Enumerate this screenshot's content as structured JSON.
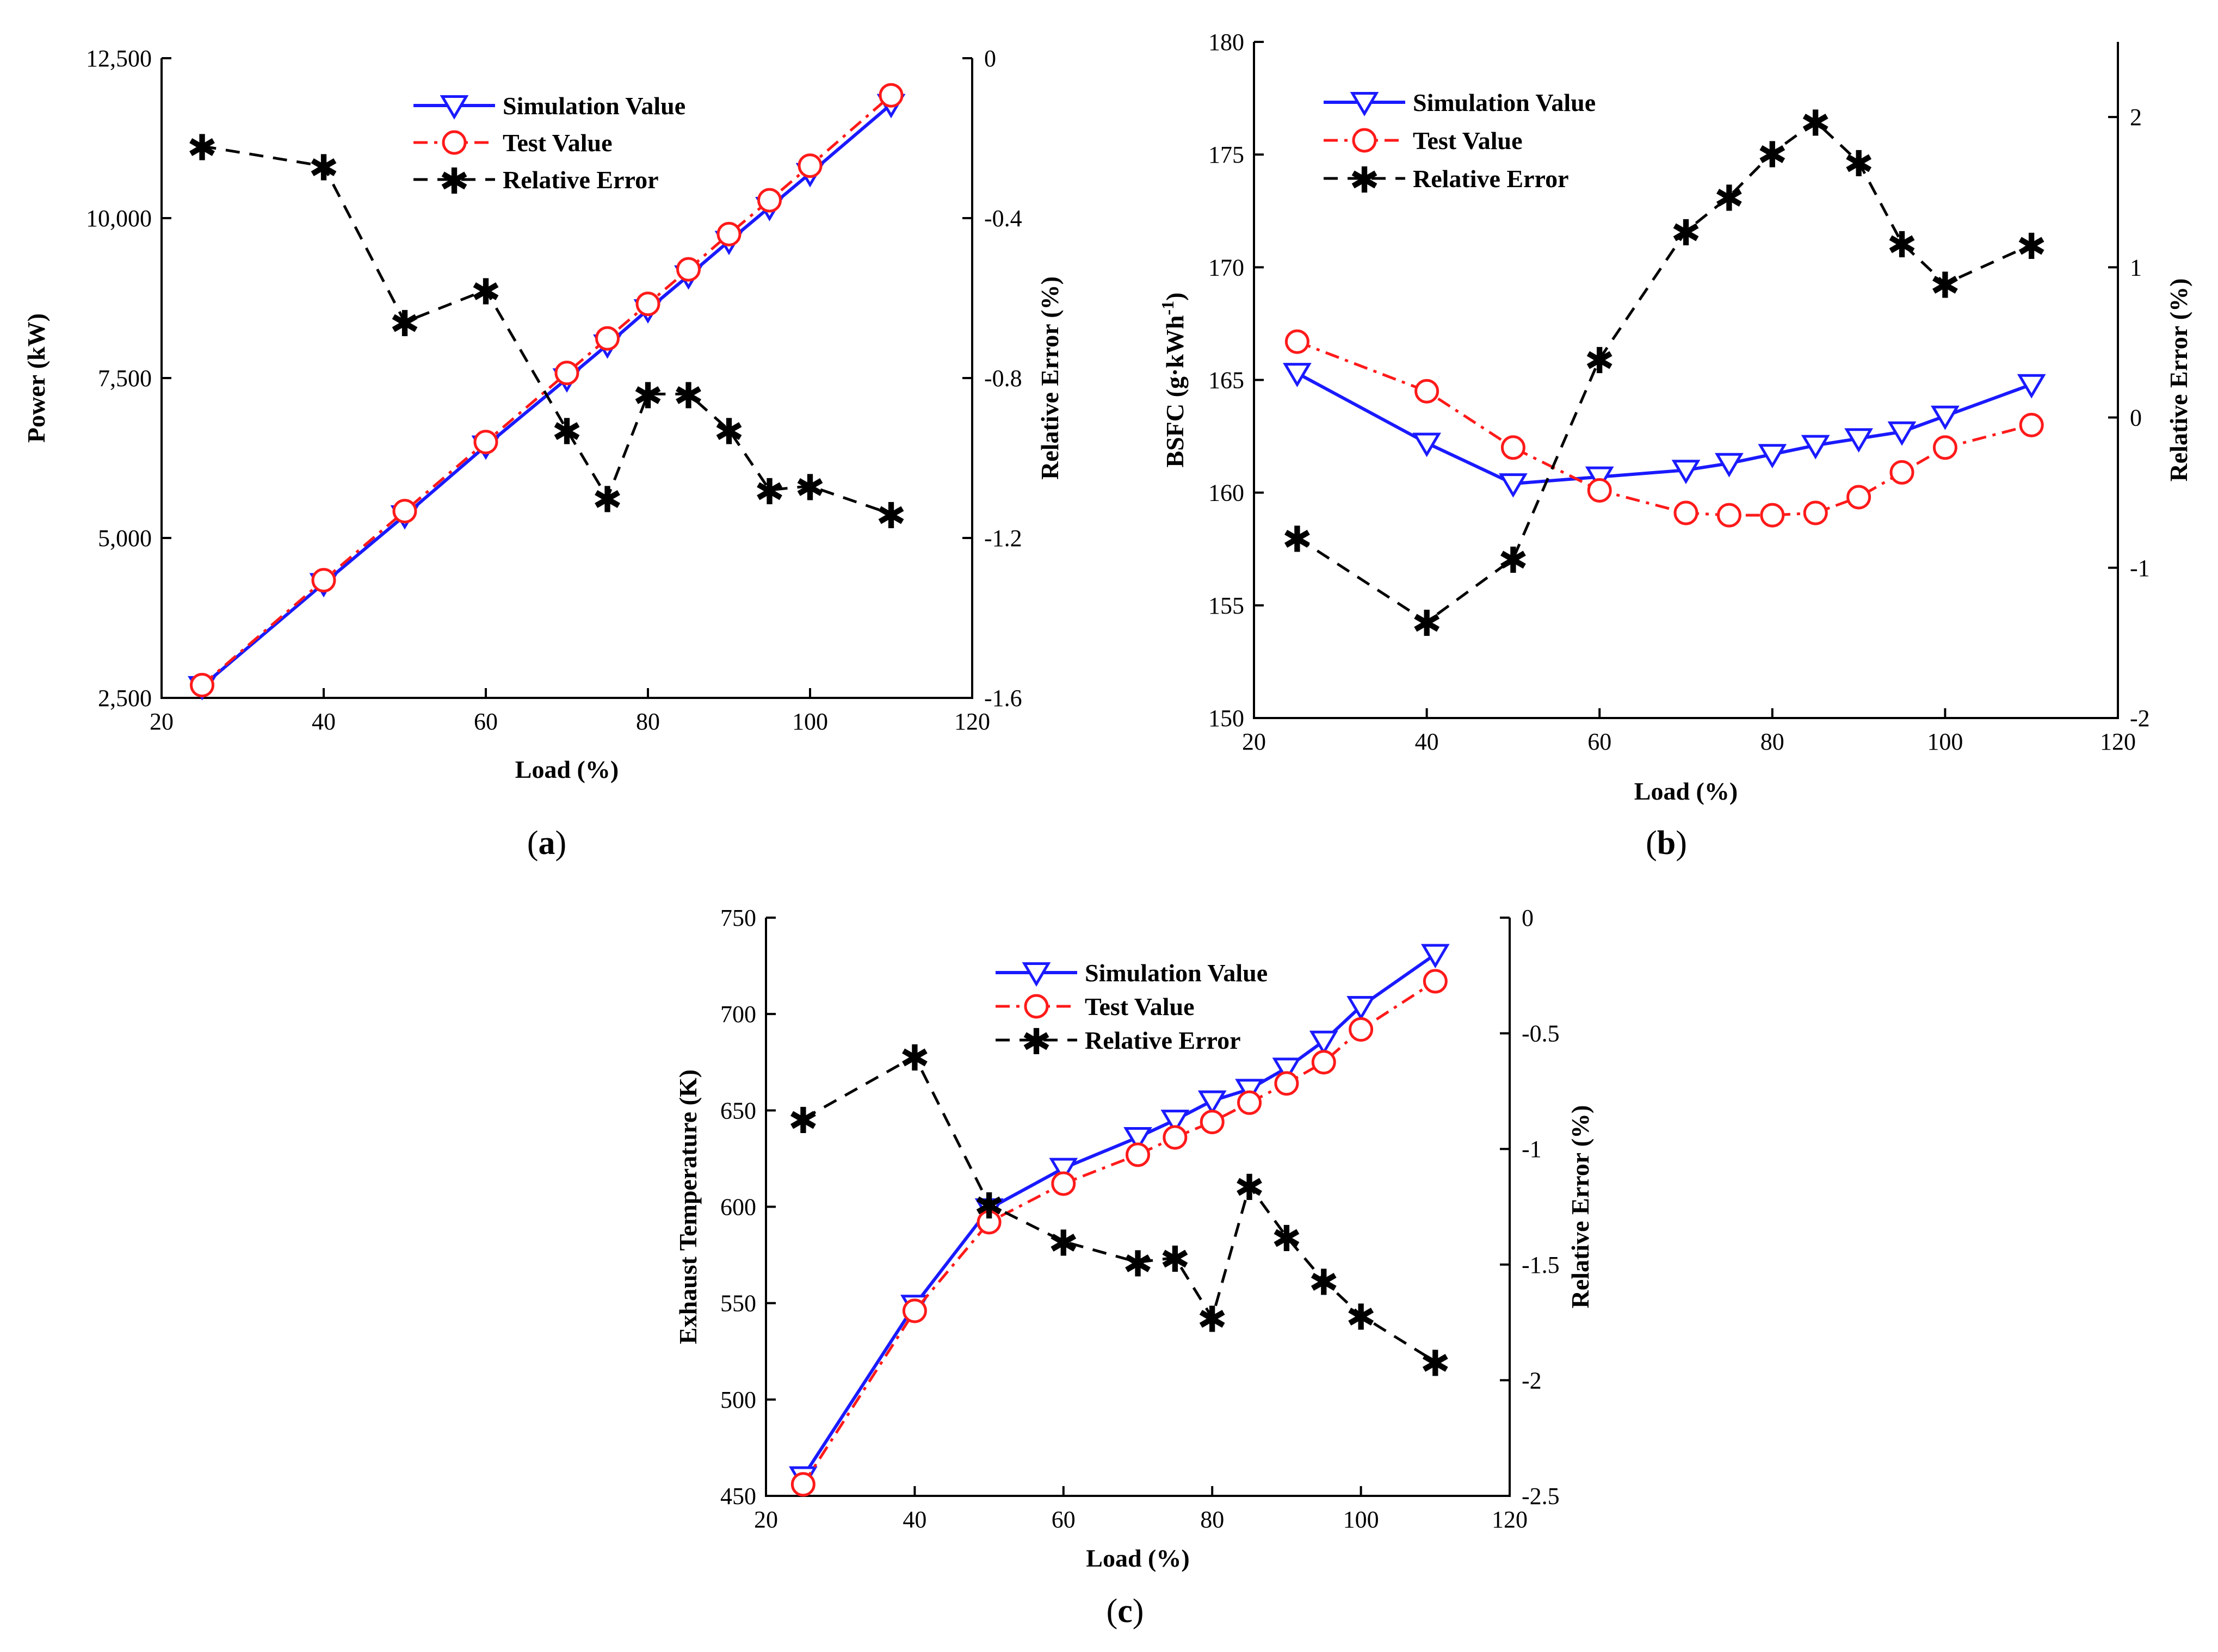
{
  "chart_data": [
    {
      "type": "line",
      "panel_label": "(a)",
      "panel_label_bold": "a",
      "x": [
        25,
        40,
        50,
        60,
        70,
        75,
        80,
        85,
        90,
        95,
        100,
        110
      ],
      "xlabel": "Load (%)",
      "xlim": [
        20,
        120
      ],
      "xticks": [
        20,
        40,
        60,
        80,
        100,
        120
      ],
      "ylabel_left": "Power (kW)",
      "ylim_left": [
        2500,
        12500
      ],
      "yticks_left": [
        2500,
        5000,
        7500,
        10000,
        12500
      ],
      "ytick_labels_left": [
        "2,500",
        "5,000",
        "7,500",
        "10,000",
        "12,500"
      ],
      "ylabel_right": "Relative Error (%)",
      "ylim_right": [
        -1.6,
        0
      ],
      "yticks_right": [
        -1.6,
        -1.2,
        -0.8,
        -0.4,
        0
      ],
      "ytick_labels_right": [
        "-1.6",
        "-1.2",
        "-0.8",
        "-0.4",
        "0"
      ],
      "legend_position": "top-center",
      "series": [
        {
          "name": "Simulation Value",
          "axis": "left",
          "color": "#1a1aff",
          "marker": "triangle-down",
          "dash": "solid",
          "values": [
            2680,
            4290,
            5350,
            6440,
            7490,
            8020,
            8570,
            9100,
            9640,
            10170,
            10700,
            11780
          ]
        },
        {
          "name": "Test Value",
          "axis": "left",
          "color": "#ff1a1a",
          "marker": "circle",
          "dash": "dashdot",
          "values": [
            2700,
            4340,
            5420,
            6500,
            7580,
            8120,
            8660,
            9200,
            9750,
            10280,
            10820,
            11920
          ]
        },
        {
          "name": "Relative Error",
          "axis": "right",
          "color": "#000000",
          "marker": "star",
          "dash": "dashed",
          "values": [
            -0.22,
            -0.27,
            -0.66,
            -0.58,
            -0.93,
            -1.1,
            -0.84,
            -0.84,
            -0.93,
            -1.08,
            -1.07,
            -1.14
          ]
        }
      ]
    },
    {
      "type": "line",
      "panel_label": "(b)",
      "panel_label_bold": "b",
      "x": [
        25,
        40,
        50,
        60,
        70,
        75,
        80,
        85,
        90,
        95,
        100,
        110
      ],
      "xlabel": "Load (%)",
      "xlim": [
        20,
        120
      ],
      "xticks": [
        20,
        40,
        60,
        80,
        100,
        120
      ],
      "ylabel_left": "BSFC (g·kWh",
      "ylabel_left_superscript": "-1",
      "ylabel_left_suffix": ")",
      "ylim_left": [
        150,
        180
      ],
      "yticks_left": [
        150,
        155,
        160,
        165,
        170,
        175,
        180
      ],
      "ytick_labels_left": [
        "150",
        "155",
        "160",
        "165",
        "170",
        "175",
        "180"
      ],
      "ylabel_right": "Relative Error (%)",
      "ylim_right": [
        -2,
        2.5
      ],
      "yticks_right": [
        -2,
        -1,
        0,
        1,
        2
      ],
      "ytick_labels_right": [
        "-2",
        "-1",
        "0",
        "1",
        "2"
      ],
      "legend_position": "top-left",
      "series": [
        {
          "name": "Simulation Value",
          "axis": "left",
          "color": "#1a1aff",
          "marker": "triangle-down",
          "dash": "solid",
          "values": [
            165.3,
            162.2,
            160.4,
            160.7,
            161.0,
            161.3,
            161.7,
            162.1,
            162.4,
            162.7,
            163.4,
            164.8
          ]
        },
        {
          "name": "Test Value",
          "axis": "left",
          "color": "#ff1a1a",
          "marker": "circle",
          "dash": "dashdot",
          "values": [
            166.7,
            164.5,
            162.0,
            160.1,
            159.1,
            159.0,
            159.0,
            159.1,
            159.8,
            160.9,
            162.0,
            163.0
          ]
        },
        {
          "name": "Relative Error",
          "axis": "right",
          "color": "#000000",
          "marker": "star",
          "dash": "dashed",
          "values": [
            -0.8,
            -1.36,
            -0.94,
            0.39,
            1.24,
            1.47,
            1.76,
            1.97,
            1.7,
            1.16,
            0.89,
            1.15
          ]
        }
      ]
    },
    {
      "type": "line",
      "panel_label": "(c)",
      "panel_label_bold": "c",
      "x": [
        25,
        40,
        50,
        60,
        70,
        75,
        80,
        85,
        90,
        95,
        100,
        110
      ],
      "xlabel": "Load (%)",
      "xlim": [
        20,
        120
      ],
      "xticks": [
        20,
        40,
        60,
        80,
        100,
        120
      ],
      "ylabel_left": "Exhaust Temperature (K)",
      "ylim_left": [
        450,
        750
      ],
      "yticks_left": [
        450,
        500,
        550,
        600,
        650,
        700,
        750
      ],
      "ytick_labels_left": [
        "450",
        "500",
        "550",
        "600",
        "650",
        "700",
        "750"
      ],
      "ylabel_right": "Relative Error (%)",
      "ylim_right": [
        -2.5,
        0
      ],
      "yticks_right": [
        -2.5,
        -2,
        -1.5,
        -1,
        -0.5,
        0
      ],
      "ytick_labels_right": [
        "-2.5",
        "-2",
        "-1.5",
        "-1",
        "-0.5",
        "0"
      ],
      "legend_position": "top-center",
      "series": [
        {
          "name": "Simulation Value",
          "axis": "left",
          "color": "#1a1aff",
          "marker": "triangle-down",
          "dash": "solid",
          "values": [
            460,
            549,
            599,
            620,
            636,
            645,
            655,
            661,
            672,
            686,
            704,
            731
          ]
        },
        {
          "name": "Test Value",
          "axis": "left",
          "color": "#ff1a1a",
          "marker": "circle",
          "dash": "dashdot",
          "values": [
            456,
            546,
            592,
            612,
            627,
            636,
            644,
            654,
            664,
            675,
            692,
            717
          ]
        },
        {
          "name": "Relative Error",
          "axis": "right",
          "color": "#000000",
          "marker": "star",
          "dash": "dashed",
          "values": [
            -0.87,
            -0.6,
            -1.24,
            -1.4,
            -1.49,
            -1.47,
            -1.73,
            -1.16,
            -1.38,
            -1.57,
            -1.72,
            -1.92
          ]
        }
      ]
    }
  ]
}
